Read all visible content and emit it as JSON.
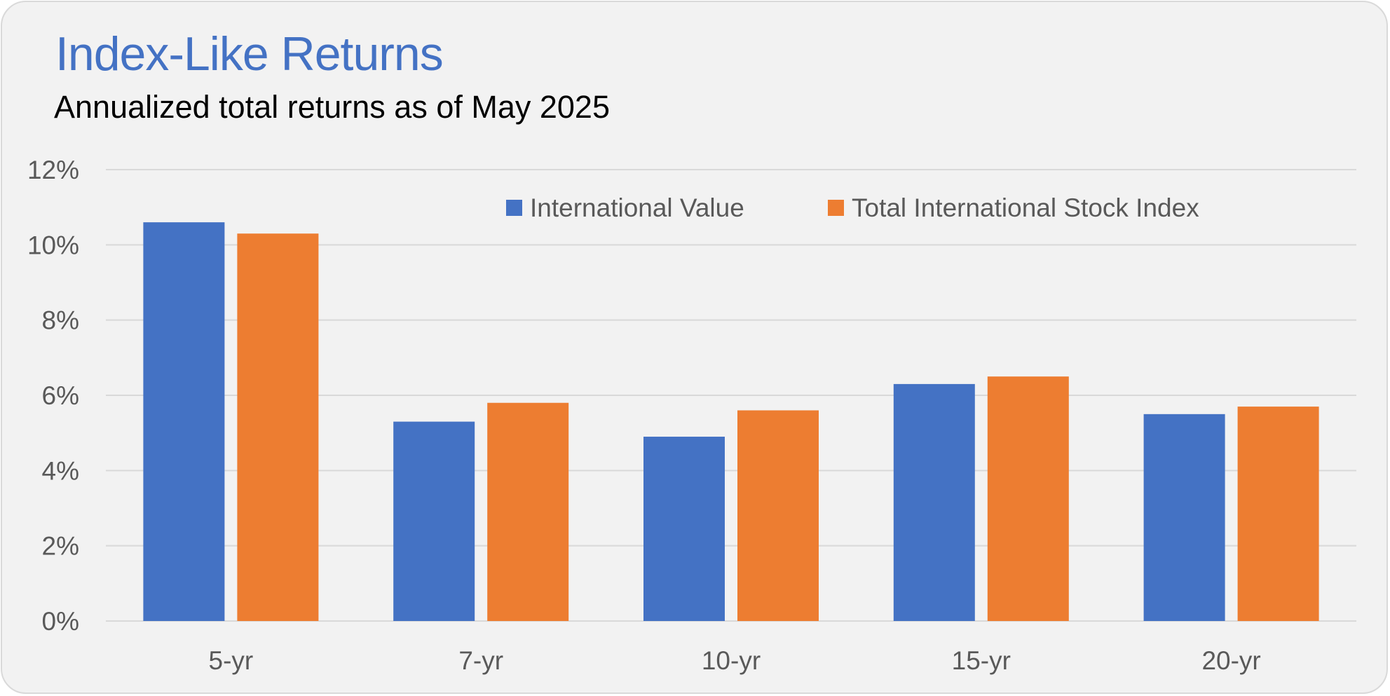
{
  "colors": {
    "background": "#f2f2f2",
    "title": "#4472c4",
    "gridline": "#d9d9d9",
    "tick_text": "#595959"
  },
  "chart_data": {
    "type": "bar",
    "title": "Index-Like Returns",
    "subtitle": "Annualized total returns as of May 2025",
    "categories": [
      "5-yr",
      "7-yr",
      "10-yr",
      "15-yr",
      "20-yr"
    ],
    "series": [
      {
        "name": "International Value",
        "color": "#4472c4",
        "values": [
          10.6,
          5.3,
          4.9,
          6.3,
          5.5
        ]
      },
      {
        "name": "Total International Stock Index",
        "color": "#ed7d31",
        "values": [
          10.3,
          5.8,
          5.6,
          6.5,
          5.7
        ]
      }
    ],
    "y_ticks": [
      "0%",
      "2%",
      "4%",
      "6%",
      "8%",
      "10%",
      "12%"
    ],
    "ylim": [
      0,
      12
    ],
    "xlabel": "",
    "ylabel": "",
    "grid": true,
    "legend_position": "top-right"
  }
}
